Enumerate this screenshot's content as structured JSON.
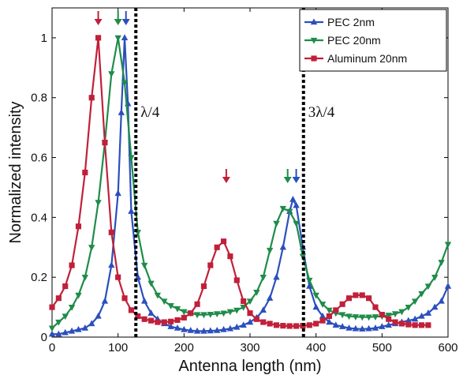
{
  "chart_data": {
    "type": "line",
    "xlabel": "Antenna length (nm)",
    "ylabel": "Normalized intensity",
    "xlim": [
      0,
      600
    ],
    "ylim": [
      0,
      1.1
    ],
    "xticks": [
      "0",
      "100",
      "200",
      "300",
      "400",
      "500",
      "600"
    ],
    "yticks": [
      "0",
      "0.2",
      "0.4",
      "0.6",
      "0.8",
      "1"
    ],
    "grid": false,
    "legend_position": "top-right",
    "annotations": [
      {
        "text": "λ/4",
        "x": 127
      },
      {
        "text": "3λ/4",
        "x": 381
      }
    ],
    "series": [
      {
        "name": "PEC 2nm",
        "color": "#2b4fbd",
        "marker": "triangle-up",
        "x": [
          0,
          10,
          20,
          30,
          40,
          50,
          60,
          70,
          80,
          90,
          100,
          105,
          110,
          115,
          120,
          130,
          140,
          150,
          160,
          170,
          180,
          190,
          200,
          210,
          220,
          230,
          240,
          250,
          260,
          270,
          280,
          290,
          300,
          310,
          320,
          330,
          340,
          350,
          360,
          365,
          370,
          380,
          390,
          400,
          410,
          420,
          430,
          440,
          450,
          460,
          470,
          480,
          490,
          500,
          510,
          520,
          530,
          540,
          550,
          560,
          570,
          580,
          590,
          600
        ],
        "y": [
          0.01,
          0.01,
          0.015,
          0.02,
          0.025,
          0.03,
          0.045,
          0.07,
          0.12,
          0.24,
          0.48,
          0.75,
          1.0,
          0.78,
          0.42,
          0.2,
          0.12,
          0.08,
          0.06,
          0.045,
          0.035,
          0.03,
          0.025,
          0.022,
          0.02,
          0.02,
          0.021,
          0.022,
          0.025,
          0.028,
          0.033,
          0.04,
          0.05,
          0.065,
          0.09,
          0.13,
          0.2,
          0.3,
          0.42,
          0.46,
          0.44,
          0.3,
          0.17,
          0.1,
          0.07,
          0.05,
          0.04,
          0.035,
          0.03,
          0.028,
          0.027,
          0.028,
          0.03,
          0.035,
          0.04,
          0.045,
          0.05,
          0.055,
          0.06,
          0.07,
          0.08,
          0.1,
          0.12,
          0.17
        ]
      },
      {
        "name": "PEC 20nm",
        "color": "#1f8c4a",
        "marker": "triangle-down",
        "x": [
          0,
          10,
          20,
          30,
          40,
          50,
          60,
          70,
          80,
          90,
          100,
          110,
          120,
          130,
          140,
          150,
          160,
          170,
          180,
          190,
          200,
          210,
          220,
          230,
          240,
          250,
          260,
          270,
          280,
          290,
          300,
          310,
          320,
          330,
          340,
          350,
          360,
          370,
          380,
          390,
          400,
          410,
          420,
          430,
          440,
          450,
          460,
          470,
          480,
          490,
          500,
          510,
          520,
          530,
          540,
          550,
          560,
          570,
          580,
          590,
          600
        ],
        "y": [
          0.03,
          0.05,
          0.07,
          0.1,
          0.14,
          0.2,
          0.3,
          0.45,
          0.65,
          0.88,
          1.0,
          0.85,
          0.6,
          0.35,
          0.24,
          0.18,
          0.14,
          0.12,
          0.105,
          0.095,
          0.085,
          0.08,
          0.075,
          0.075,
          0.076,
          0.078,
          0.08,
          0.085,
          0.09,
          0.1,
          0.12,
          0.15,
          0.2,
          0.29,
          0.38,
          0.43,
          0.42,
          0.38,
          0.27,
          0.19,
          0.14,
          0.11,
          0.09,
          0.08,
          0.075,
          0.07,
          0.068,
          0.067,
          0.067,
          0.068,
          0.07,
          0.073,
          0.078,
          0.085,
          0.1,
          0.12,
          0.145,
          0.17,
          0.2,
          0.25,
          0.31
        ]
      },
      {
        "name": "Aluminum 20nm",
        "color": "#c0203a",
        "marker": "square",
        "x": [
          0,
          10,
          20,
          30,
          40,
          50,
          60,
          70,
          80,
          90,
          100,
          110,
          120,
          130,
          140,
          150,
          160,
          170,
          180,
          190,
          200,
          210,
          220,
          230,
          240,
          250,
          260,
          270,
          280,
          290,
          300,
          310,
          320,
          330,
          340,
          350,
          360,
          370,
          380,
          390,
          400,
          410,
          420,
          430,
          440,
          450,
          460,
          470,
          480,
          490,
          500,
          510,
          520,
          530,
          540,
          550,
          560,
          570
        ],
        "y": [
          0.1,
          0.13,
          0.17,
          0.24,
          0.37,
          0.55,
          0.8,
          1.0,
          0.65,
          0.35,
          0.2,
          0.13,
          0.09,
          0.07,
          0.06,
          0.055,
          0.05,
          0.05,
          0.052,
          0.057,
          0.065,
          0.08,
          0.11,
          0.17,
          0.24,
          0.3,
          0.32,
          0.27,
          0.19,
          0.12,
          0.08,
          0.06,
          0.05,
          0.045,
          0.04,
          0.038,
          0.037,
          0.037,
          0.038,
          0.04,
          0.045,
          0.055,
          0.07,
          0.09,
          0.11,
          0.13,
          0.14,
          0.14,
          0.13,
          0.1,
          0.075,
          0.06,
          0.05,
          0.045,
          0.042,
          0.04,
          0.04,
          0.04
        ]
      }
    ],
    "peak_arrows": [
      {
        "x": 70,
        "color": "#c0203a"
      },
      {
        "x": 100,
        "color": "#1f8c4a"
      },
      {
        "x": 112,
        "color": "#2b4fbd"
      },
      {
        "x": 264,
        "color": "#c0203a"
      },
      {
        "x": 357,
        "color": "#1f8c4a"
      },
      {
        "x": 370,
        "color": "#2b4fbd"
      }
    ]
  }
}
